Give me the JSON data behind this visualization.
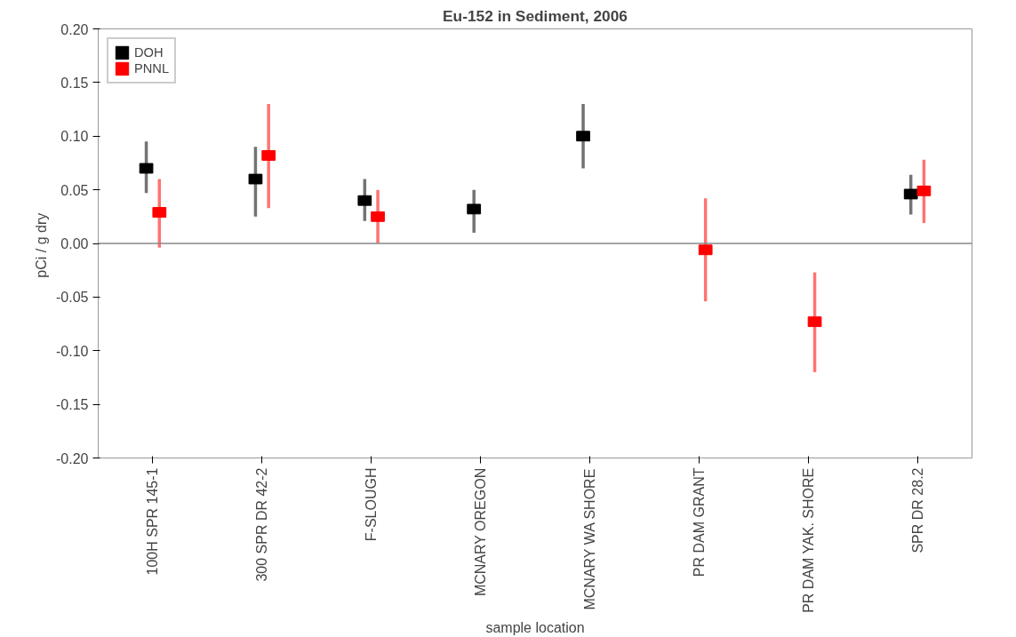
{
  "chart_data": {
    "type": "scatter",
    "title": "Eu-152 in Sediment, 2006",
    "xlabel": "sample location",
    "ylabel": "pCi / g  dry",
    "categories": [
      "100H SPR 145-1",
      "300 SPR DR 42-2",
      "F-SLOUGH",
      "MCNARY OREGON",
      "MCNARY WA SHORE",
      "PR DAM GRANT",
      "PR DAM YAK. SHORE",
      "SPR DR 28.2"
    ],
    "series": [
      {
        "name": "DOH",
        "color": "#000000",
        "values": [
          0.07,
          0.06,
          0.04,
          0.032,
          0.1,
          null,
          null,
          0.046
        ],
        "errors": [
          [
            0.047,
            0.095
          ],
          [
            0.025,
            0.09
          ],
          [
            0.021,
            0.06
          ],
          [
            0.01,
            0.05
          ],
          [
            0.07,
            0.13
          ],
          null,
          null,
          [
            0.027,
            0.064
          ]
        ]
      },
      {
        "name": "PNNL",
        "color": "#ff0000",
        "values": [
          0.029,
          0.082,
          0.025,
          null,
          null,
          -0.006,
          -0.073,
          0.049
        ],
        "errors": [
          [
            -0.004,
            0.06
          ],
          [
            0.033,
            0.13
          ],
          [
            0.0,
            0.05
          ],
          null,
          null,
          [
            -0.054,
            0.042
          ],
          [
            -0.12,
            -0.027
          ],
          [
            0.019,
            0.078
          ]
        ]
      }
    ],
    "ylim": [
      -0.2,
      0.2
    ],
    "yticks": [
      {
        "value": -0.2,
        "label": "-0.20"
      },
      {
        "value": -0.15,
        "label": "-0.15"
      },
      {
        "value": -0.1,
        "label": "-0.10"
      },
      {
        "value": -0.05,
        "label": "-0.05"
      },
      {
        "value": 0,
        "label": "0.00"
      },
      {
        "value": 0.05,
        "label": "0.05"
      },
      {
        "value": 0.1,
        "label": "0.10"
      },
      {
        "value": 0.15,
        "label": "0.15"
      },
      {
        "value": 0.2,
        "label": "0.20"
      }
    ],
    "ref_lines": [
      {
        "axis": "y",
        "value": 0
      }
    ],
    "marker": "square",
    "legend": "top left",
    "grid": false
  }
}
